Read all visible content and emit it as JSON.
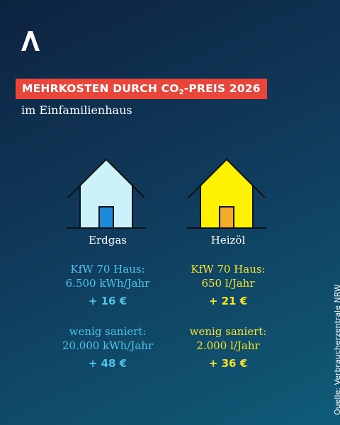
{
  "title": {
    "main": "MEHRKOSTEN DURCH CO",
    "sub": "2",
    "rest": "-PREIS 2026"
  },
  "subtitle": "im Einfamilienhaus",
  "colors": {
    "gas": "#4fc3e8",
    "oil": "#f5e431",
    "title_bg": "#e8463a"
  },
  "houses": {
    "gas": {
      "label": "Erdgas",
      "icon": "house-icon"
    },
    "oil": {
      "label": "Heizöl",
      "icon": "house-icon"
    }
  },
  "gas": {
    "kfw_title": "KfW 70 Haus:",
    "kfw_usage": "6.500 kWh/Jahr",
    "kfw_price": "+ 16 €",
    "saniert_title": "wenig saniert:",
    "saniert_usage": "20.000 kWh/Jahr",
    "saniert_price": "+ 48 €"
  },
  "oil": {
    "kfw_title": "KfW 70 Haus:",
    "kfw_usage": "650 l/Jahr",
    "kfw_price": "+ 21 €",
    "saniert_title": "wenig saniert:",
    "saniert_usage": "2.000 l/Jahr",
    "saniert_price": "+ 36 €"
  },
  "source": "Quelle: Verbraucherzentrale NRW"
}
